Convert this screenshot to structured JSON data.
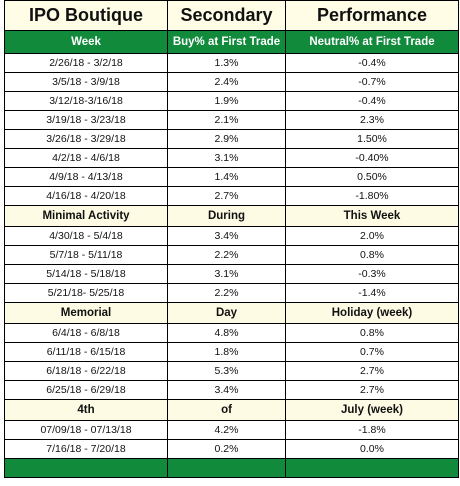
{
  "table": {
    "title_row": [
      "IPO Boutique",
      "Secondary",
      "Performance"
    ],
    "header": [
      "Week",
      "Buy% at First Trade",
      "Neutral% at First Trade"
    ],
    "rows": [
      [
        "2/26/18 - 3/2/18",
        "1.3%",
        "-0.4%"
      ],
      [
        "3/5/18 - 3/9/18",
        "2.4%",
        "-0.7%"
      ],
      [
        "3/12/18-3/16/18",
        "1.9%",
        "-0.4%"
      ],
      [
        "3/19/18 - 3/23/18",
        "2.1%",
        "2.3%"
      ],
      [
        "3/26/18 - 3/29/18",
        "2.9%",
        "1.50%"
      ],
      [
        "4/2/18 - 4/6/18",
        "3.1%",
        "-0.40%"
      ],
      [
        "4/9/18 - 4/13/18",
        "1.4%",
        "0.50%"
      ],
      [
        "4/16/18 - 4/20/18",
        "2.7%",
        "-1.80%"
      ],
      [
        "Minimal Activity",
        "During",
        "This Week"
      ],
      [
        "4/30/18 - 5/4/18",
        "3.4%",
        "2.0%"
      ],
      [
        "5/7/18 - 5/11/18",
        "2.2%",
        "0.8%"
      ],
      [
        "5/14/18 - 5/18/18",
        "3.1%",
        "-0.3%"
      ],
      [
        "5/21/18- 5/25/18",
        "2.2%",
        "-1.4%"
      ],
      [
        "Memorial",
        "Day",
        "Holiday (week)"
      ],
      [
        "6/4/18 - 6/8/18",
        "4.8%",
        "0.8%"
      ],
      [
        "6/11/18 - 6/15/18",
        "1.8%",
        "0.7%"
      ],
      [
        "6/18/18 - 6/22/18",
        "5.3%",
        "2.7%"
      ],
      [
        "6/25/18 - 6/29/18",
        "3.4%",
        "2.7%"
      ],
      [
        "4th",
        "of",
        "July (week)"
      ],
      [
        "07/09/18 - 07/13/18",
        "4.2%",
        "-1.8%"
      ],
      [
        "7/16/18 - 7/20/18",
        "0.2%",
        "0.0%"
      ]
    ]
  }
}
